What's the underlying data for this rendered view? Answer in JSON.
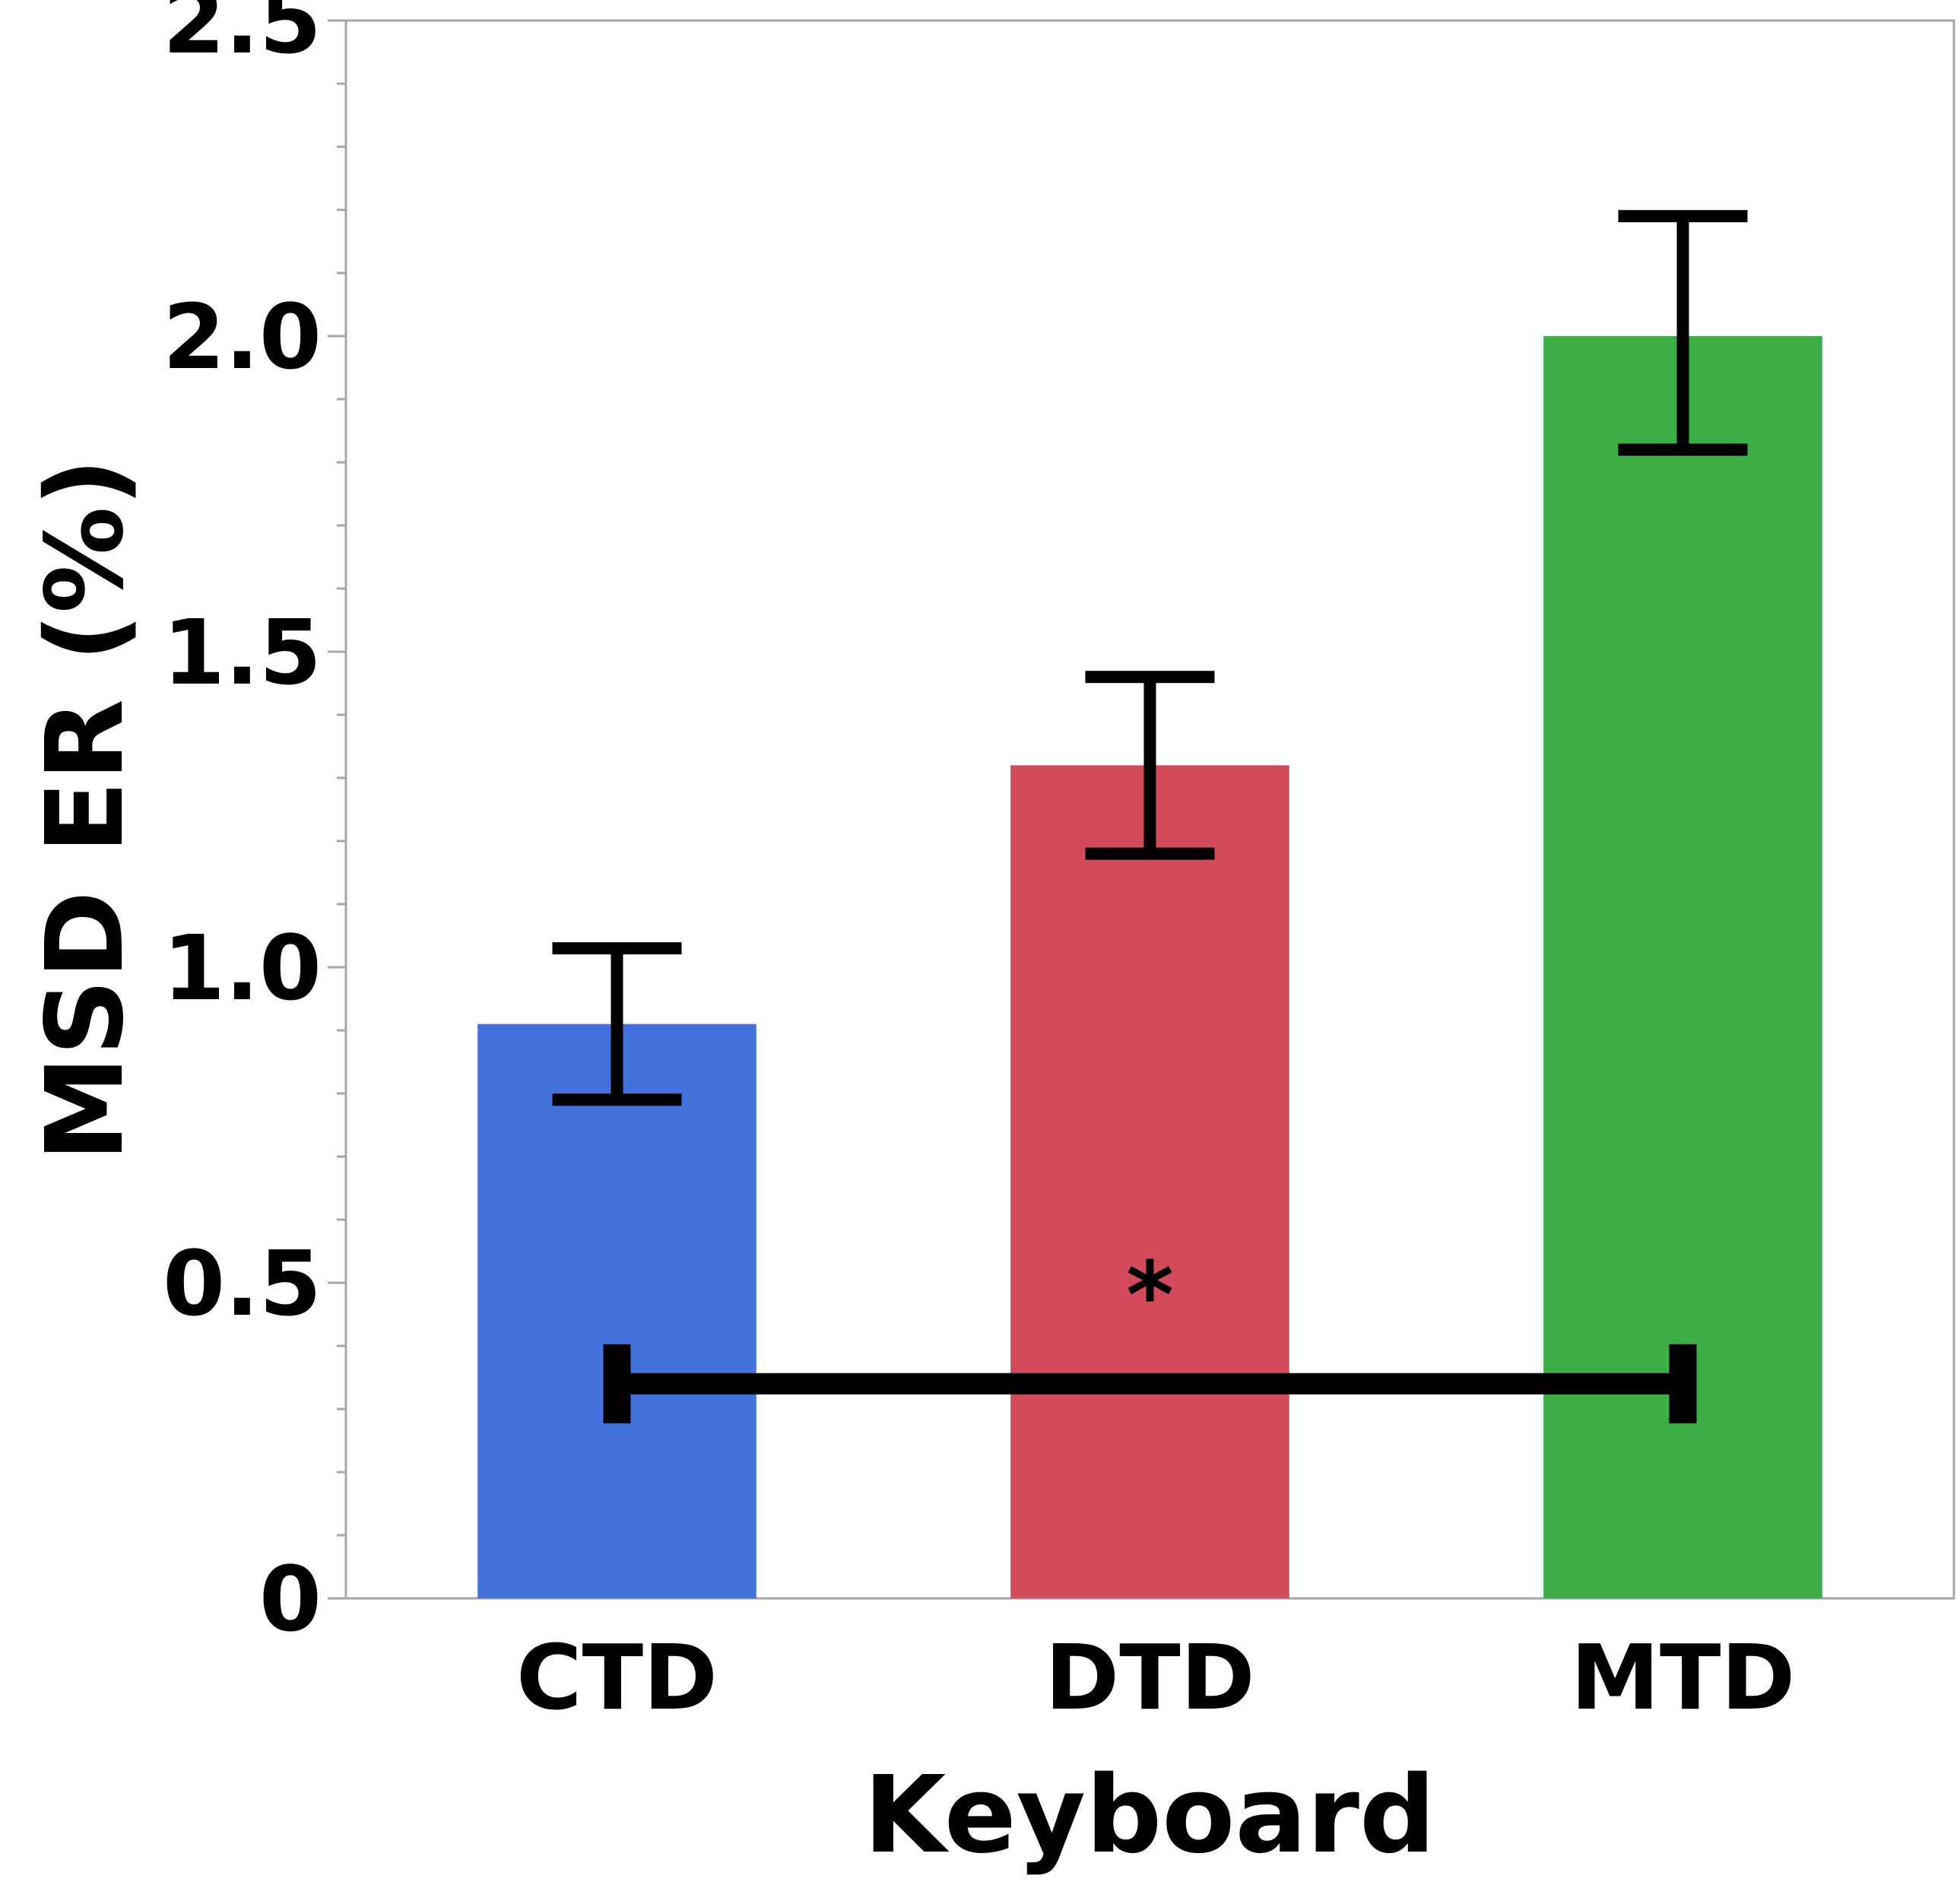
{
  "chart_data": {
    "type": "bar",
    "categories": [
      "CTD",
      "DTD",
      "MTD"
    ],
    "values": [
      0.91,
      1.32,
      2.0
    ],
    "error_bars": [
      {
        "low": 0.79,
        "high": 1.03
      },
      {
        "low": 1.18,
        "high": 1.46
      },
      {
        "low": 1.82,
        "high": 2.19
      }
    ],
    "colors": [
      "#4472dc",
      "#d34a5a",
      "#3dad45"
    ],
    "xlabel": "Keyboard",
    "ylabel": "MSD ER (%)",
    "ylim": [
      0,
      2.5
    ],
    "yticks": [
      {
        "value": 0,
        "label": "0"
      },
      {
        "value": 0.5,
        "label": "0.5"
      },
      {
        "value": 1.0,
        "label": "1.0"
      },
      {
        "value": 1.5,
        "label": "1.5"
      },
      {
        "value": 2.0,
        "label": "2.0"
      },
      {
        "value": 2.5,
        "label": "2.5"
      }
    ],
    "minor_tick_step": 0.1,
    "grid": false,
    "significance": {
      "from": "CTD",
      "to": "MTD",
      "label": "*",
      "y": 0.34
    }
  }
}
